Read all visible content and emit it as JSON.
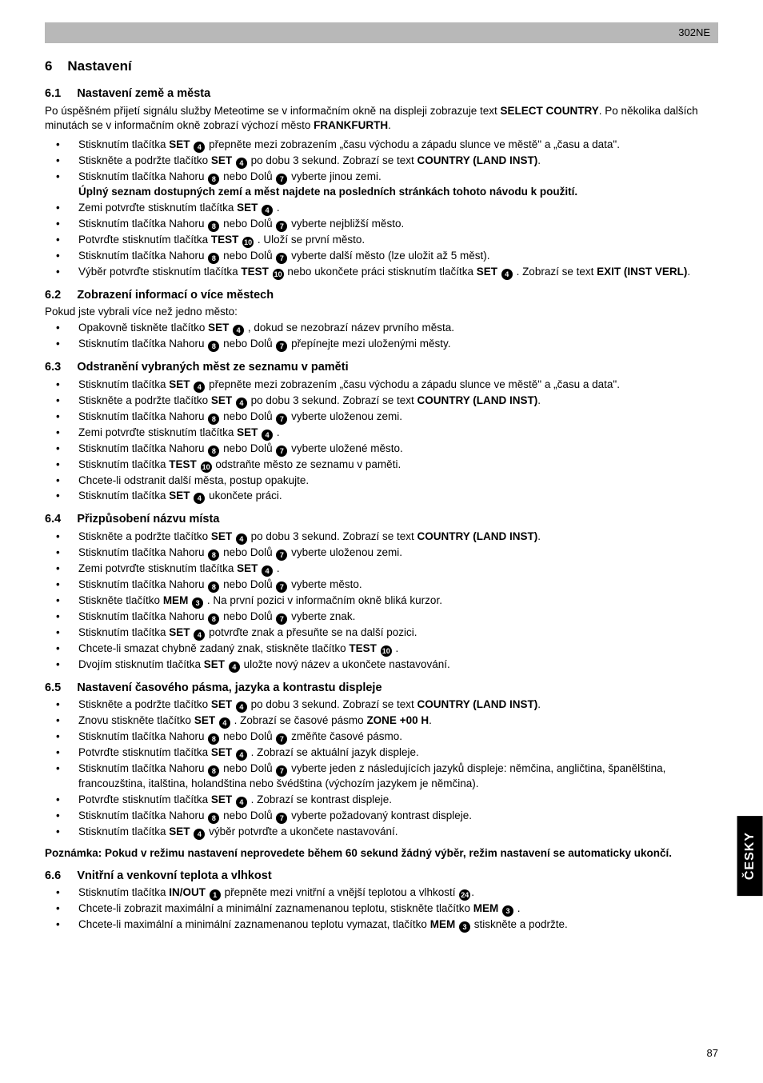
{
  "header": {
    "doc_code": "302NE"
  },
  "side_tab": "ČESKY",
  "page_number": "87",
  "s6": {
    "num": "6",
    "title": "Nastavení"
  },
  "s61": {
    "num": "6.1",
    "title": "Nastavení země a města",
    "intro1a": "Po úspěšném přijetí signálu služby Meteotime se v informačním okně na displeji zobrazuje text ",
    "intro1b": "SELECT COUNTRY",
    "intro1c": ". Po několika dalších minutách se v informačním okně zobrazí výchozí město ",
    "intro1d": "FRANKFURTH",
    "intro1e": ".",
    "b1a": "Stisknutím tlačítka ",
    "b1b": "SET",
    "b1c": " přepněte mezi zobrazením „času východu a západu slunce ve městě\" a „času a data\".",
    "b2a": "Stiskněte a podržte tlačítko ",
    "b2b": "SET",
    "b2c": " po dobu 3 sekund. Zobrazí se text ",
    "b2d": "COUNTRY (LAND INST)",
    "b2e": ".",
    "b3a": "Stisknutím tlačítka Nahoru ",
    "b3b": " nebo Dolů ",
    "b3c": " vyberte jinou zemi.",
    "b3d": "Úplný seznam dostupných zemí a měst najdete na posledních stránkách tohoto návodu k použití.",
    "b4a": "Zemi potvrďte stisknutím tlačítka ",
    "b4b": "SET",
    "b4c": " .",
    "b5a": "Stisknutím tlačítka Nahoru ",
    "b5b": " nebo Dolů ",
    "b5c": " vyberte nejbližší město.",
    "b6a": "Potvrďte stisknutím tlačítka ",
    "b6b": "TEST",
    "b6c": " . Uloží se první město.",
    "b7a": "Stisknutím tlačítka Nahoru ",
    "b7b": " nebo Dolů ",
    "b7c": " vyberte další město (lze uložit až 5 měst).",
    "b8a": "Výběr potvrďte stisknutím tlačítka ",
    "b8b": "TEST",
    "b8c": " nebo ukončete práci stisknutím tlačítka ",
    "b8d": "SET",
    "b8e": " . Zobrazí se text ",
    "b8f": "EXIT (INST VERL)",
    "b8g": "."
  },
  "s62": {
    "num": "6.2",
    "title": "Zobrazení informací o více městech",
    "intro": "Pokud jste vybrali více než jedno město:",
    "b1a": "Opakovně tiskněte tlačítko ",
    "b1b": "SET",
    "b1c": " , dokud se nezobrazí název prvního města.",
    "b2a": "Stisknutím tlačítka Nahoru ",
    "b2b": " nebo Dolů ",
    "b2c": " přepínejte mezi uloženými městy."
  },
  "s63": {
    "num": "6.3",
    "title": "Odstranění vybraných měst ze seznamu v paměti",
    "b1a": "Stisknutím tlačítka ",
    "b1b": "SET",
    "b1c": " přepněte mezi zobrazením „času východu a západu slunce ve městě\" a „času a data\".",
    "b2a": "Stiskněte a podržte tlačítko ",
    "b2b": "SET",
    "b2c": " po dobu 3 sekund. Zobrazí se text ",
    "b2d": "COUNTRY (LAND INST)",
    "b2e": ".",
    "b3a": "Stisknutím tlačítka Nahoru ",
    "b3b": " nebo Dolů ",
    "b3c": " vyberte uloženou zemi.",
    "b4a": "Zemi potvrďte stisknutím tlačítka ",
    "b4b": "SET",
    "b4c": " .",
    "b5a": "Stisknutím tlačítka Nahoru ",
    "b5b": " nebo Dolů ",
    "b5c": " vyberte uložené město.",
    "b6a": "Stisknutím tlačítka ",
    "b6b": "TEST",
    "b6c": " odstraňte město ze seznamu v paměti.",
    "b7": "Chcete-li odstranit další města, postup opakujte.",
    "b8a": "Stisknutím tlačítka ",
    "b8b": "SET",
    "b8c": " ukončete práci."
  },
  "s64": {
    "num": "6.4",
    "title": "Přizpůsobení názvu místa",
    "b1a": "Stiskněte a podržte tlačítko ",
    "b1b": "SET",
    "b1c": " po dobu 3 sekund. Zobrazí se text ",
    "b1d": "COUNTRY (LAND INST)",
    "b1e": ".",
    "b2a": "Stisknutím tlačítka Nahoru ",
    "b2b": " nebo Dolů ",
    "b2c": " vyberte uloženou zemi.",
    "b3a": "Zemi potvrďte stisknutím tlačítka ",
    "b3b": "SET",
    "b3c": " .",
    "b4a": "Stisknutím tlačítka Nahoru ",
    "b4b": " nebo Dolů ",
    "b4c": " vyberte město.",
    "b5a": "Stiskněte tlačítko ",
    "b5b": "MEM",
    "b5c": " . Na první pozici v informačním okně bliká kurzor.",
    "b6a": "Stisknutím tlačítka Nahoru ",
    "b6b": " nebo Dolů ",
    "b6c": " vyberte znak.",
    "b7a": "Stisknutím tlačítka ",
    "b7b": "SET",
    "b7c": " potvrďte znak a přesuňte se na další pozici.",
    "b8a": "Chcete-li smazat chybně zadaný znak, stiskněte tlačítko ",
    "b8b": "TEST",
    "b8c": " .",
    "b9a": "Dvojím stisknutím tlačítka ",
    "b9b": "SET",
    "b9c": " uložte nový název a ukončete nastavování."
  },
  "s65": {
    "num": "6.5",
    "title": "Nastavení časového pásma, jazyka a kontrastu displeje",
    "b1a": "Stiskněte a podržte tlačítko ",
    "b1b": "SET",
    "b1c": " po dobu 3 sekund. Zobrazí se text ",
    "b1d": "COUNTRY (LAND INST)",
    "b1e": ".",
    "b2a": "Znovu stiskněte tlačítko ",
    "b2b": "SET",
    "b2c": " . Zobrazí se časové pásmo ",
    "b2d": "ZONE +00 H",
    "b2e": ".",
    "b3a": "Stisknutím tlačítka Nahoru ",
    "b3b": " nebo Dolů ",
    "b3c": " změňte časové pásmo.",
    "b4a": "Potvrďte stisknutím tlačítka ",
    "b4b": "SET",
    "b4c": " . Zobrazí se aktuální jazyk displeje.",
    "b5a": "Stisknutím tlačítka Nahoru ",
    "b5b": " nebo Dolů ",
    "b5c": " vyberte jeden z následujících jazyků displeje: němčina, angličtina, španělština, francouzština, italština, holandština nebo švédština (výchozím jazykem je němčina).",
    "b6a": "Potvrďte stisknutím tlačítka ",
    "b6b": "SET",
    "b6c": " . Zobrazí se kontrast displeje.",
    "b7a": "Stisknutím tlačítka Nahoru ",
    "b7b": " nebo Dolů ",
    "b7c": " vyberte požadovaný kontrast displeje.",
    "b8a": "Stisknutím tlačítka ",
    "b8b": "SET",
    "b8c": " výběr potvrďte a ukončete nastavování."
  },
  "note": "Poznámka: Pokud v režimu nastavení neprovedete během 60 sekund žádný výběr, režim nastavení se automaticky ukončí.",
  "s66": {
    "num": "6.6",
    "title": "Vnitřní a venkovní teplota a vlhkost",
    "b1a": "Stisknutím tlačítka ",
    "b1b": "IN/OUT",
    "b1c": " přepněte mezi vnitřní a vnější teplotou a vlhkostí ",
    "b1d": ".",
    "b2a": "Chcete-li zobrazit maximální a minimální zaznamenanou teplotu, stiskněte tlačítko ",
    "b2b": "MEM",
    "b2c": " .",
    "b3a": "Chcete-li maximální a minimální zaznamenanou teplotu vymazat, tlačítko ",
    "b3b": "MEM",
    "b3c": " stiskněte a podržte."
  },
  "refs": {
    "r1": "1",
    "r3": "3",
    "r4": "4",
    "r7": "7",
    "r8": "8",
    "r10": "10",
    "r24": "24"
  }
}
